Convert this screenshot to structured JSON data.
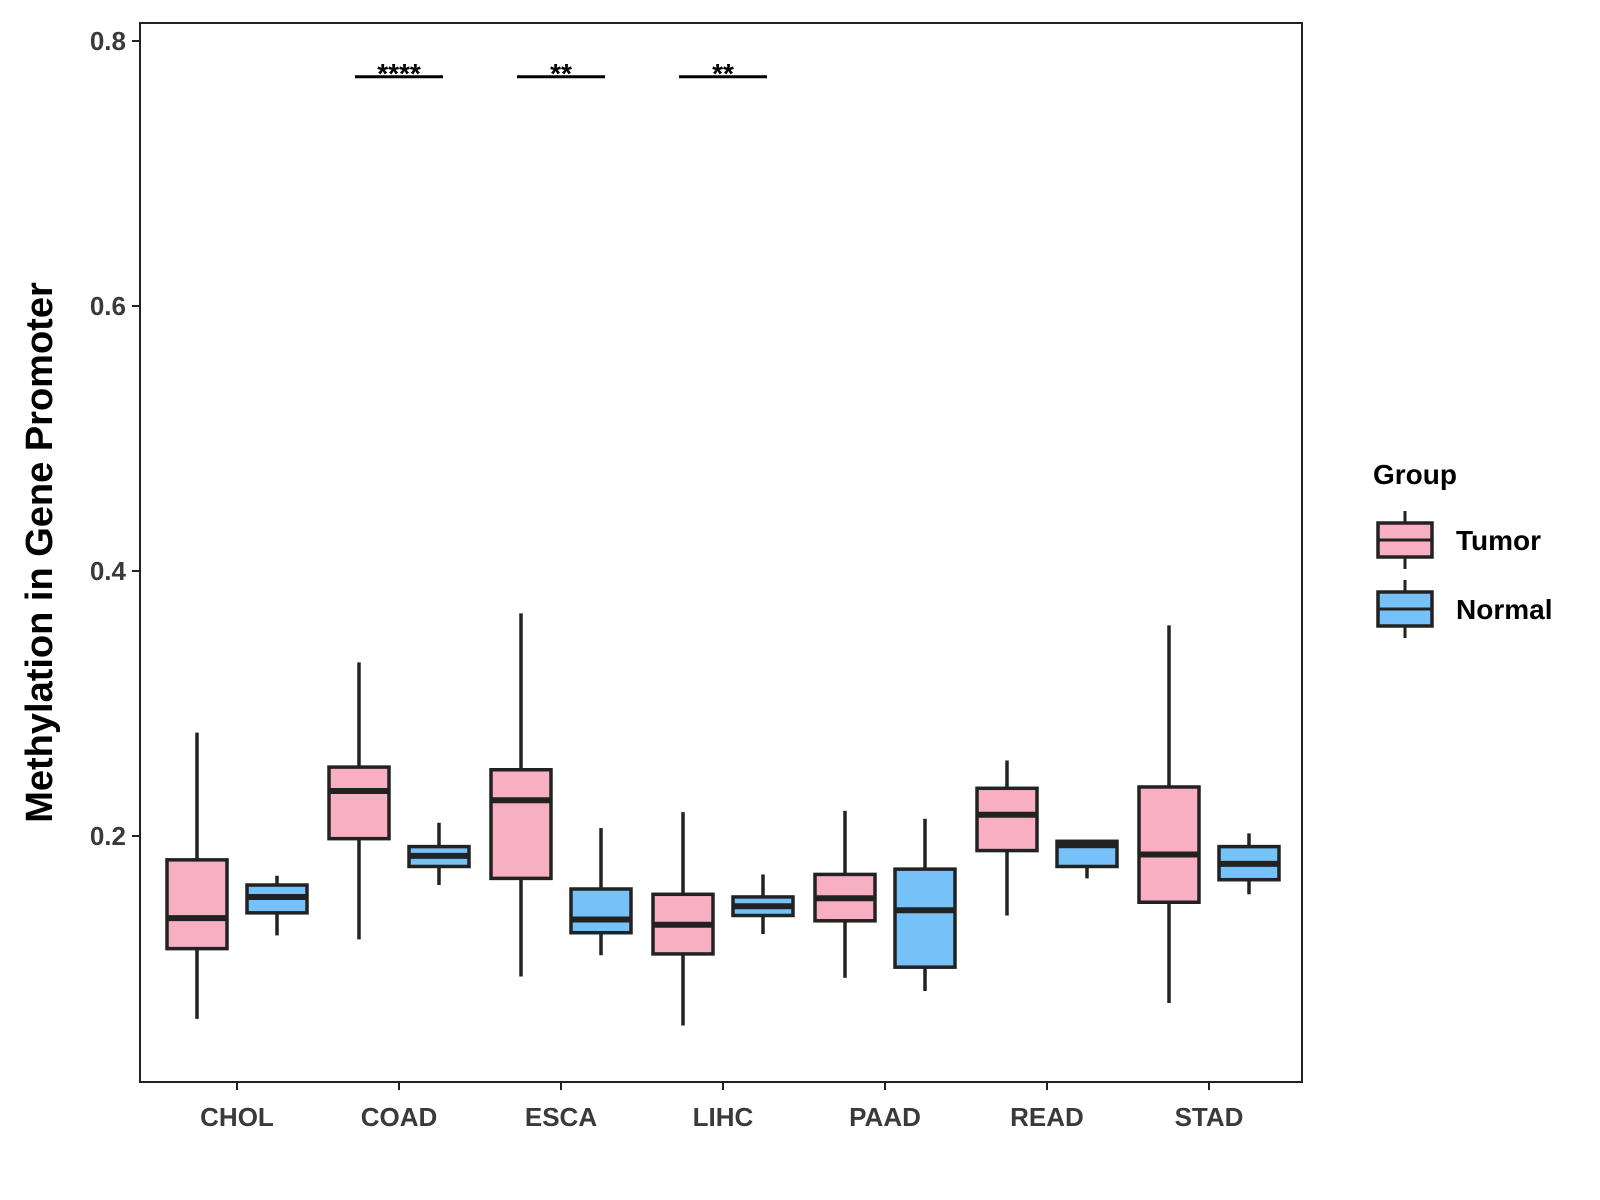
{
  "chart_data": {
    "type": "boxplot",
    "title": "",
    "xlabel": "",
    "ylabel": "Methylation in Gene Promoter",
    "ylim": [
      0.03,
      0.81
    ],
    "yticks": [
      "0.2",
      "0.4",
      "0.6",
      "0.8"
    ],
    "categories": [
      "CHOL",
      "COAD",
      "ESCA",
      "LIHC",
      "PAAD",
      "READ",
      "STAD"
    ],
    "legend": {
      "title": "Group",
      "position": "right",
      "entries": [
        {
          "name": "Tumor",
          "color": "#f9afc2"
        },
        {
          "name": "Normal",
          "color": "#75c1f8"
        }
      ]
    },
    "series": [
      {
        "name": "Tumor",
        "color": "#f9afc2",
        "boxes": [
          {
            "category": "CHOL",
            "whisker_low": 0.062,
            "q1": 0.115,
            "median": 0.138,
            "q3": 0.182,
            "whisker_high": 0.278
          },
          {
            "category": "COAD",
            "whisker_low": 0.122,
            "q1": 0.198,
            "median": 0.234,
            "q3": 0.252,
            "whisker_high": 0.331
          },
          {
            "category": "ESCA",
            "whisker_low": 0.094,
            "q1": 0.168,
            "median": 0.227,
            "q3": 0.25,
            "whisker_high": 0.368
          },
          {
            "category": "LIHC",
            "whisker_low": 0.057,
            "q1": 0.111,
            "median": 0.133,
            "q3": 0.156,
            "whisker_high": 0.218
          },
          {
            "category": "PAAD",
            "whisker_low": 0.093,
            "q1": 0.136,
            "median": 0.153,
            "q3": 0.171,
            "whisker_high": 0.219
          },
          {
            "category": "READ",
            "whisker_low": 0.14,
            "q1": 0.189,
            "median": 0.216,
            "q3": 0.236,
            "whisker_high": 0.257
          },
          {
            "category": "STAD",
            "whisker_low": 0.074,
            "q1": 0.15,
            "median": 0.186,
            "q3": 0.237,
            "whisker_high": 0.359
          }
        ]
      },
      {
        "name": "Normal",
        "color": "#75c1f8",
        "boxes": [
          {
            "category": "CHOL",
            "whisker_low": 0.125,
            "q1": 0.142,
            "median": 0.154,
            "q3": 0.163,
            "whisker_high": 0.17
          },
          {
            "category": "COAD",
            "whisker_low": 0.163,
            "q1": 0.177,
            "median": 0.185,
            "q3": 0.192,
            "whisker_high": 0.21
          },
          {
            "category": "ESCA",
            "whisker_low": 0.11,
            "q1": 0.127,
            "median": 0.137,
            "q3": 0.16,
            "whisker_high": 0.206
          },
          {
            "category": "LIHC",
            "whisker_low": 0.126,
            "q1": 0.14,
            "median": 0.147,
            "q3": 0.154,
            "whisker_high": 0.171
          },
          {
            "category": "PAAD",
            "whisker_low": 0.083,
            "q1": 0.101,
            "median": 0.144,
            "q3": 0.175,
            "whisker_high": 0.213
          },
          {
            "category": "READ",
            "whisker_low": 0.168,
            "q1": 0.177,
            "median": 0.193,
            "q3": 0.196,
            "whisker_high": 0.197
          },
          {
            "category": "STAD",
            "whisker_low": 0.156,
            "q1": 0.167,
            "median": 0.179,
            "q3": 0.192,
            "whisker_high": 0.202
          }
        ]
      }
    ],
    "significance": [
      {
        "category": "COAD",
        "label": "****",
        "y": 0.773
      },
      {
        "category": "ESCA",
        "label": "**",
        "y": 0.773
      },
      {
        "category": "LIHC",
        "label": "**",
        "y": 0.773
      }
    ]
  }
}
